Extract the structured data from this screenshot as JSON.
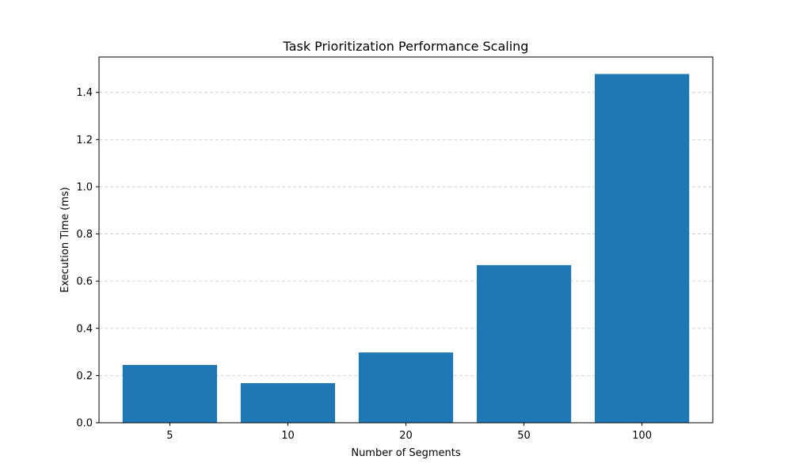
{
  "chart_data": {
    "type": "bar",
    "title": "Task Prioritization Performance Scaling",
    "xlabel": "Number of Segments",
    "ylabel": "Execution Time (ms)",
    "categories": [
      "5",
      "10",
      "20",
      "50",
      "100"
    ],
    "values": [
      0.245,
      0.168,
      0.298,
      0.668,
      1.478
    ],
    "ylim": [
      0,
      1.55
    ],
    "yticks": [
      0.0,
      0.2,
      0.4,
      0.6,
      0.8,
      1.0,
      1.2,
      1.4
    ],
    "ytick_labels": [
      "0.0",
      "0.2",
      "0.4",
      "0.6",
      "0.8",
      "1.0",
      "1.2",
      "1.4"
    ],
    "grid": "y-dashed",
    "bar_color": "#1f77b4",
    "grid_color": "#b0b0b0"
  }
}
